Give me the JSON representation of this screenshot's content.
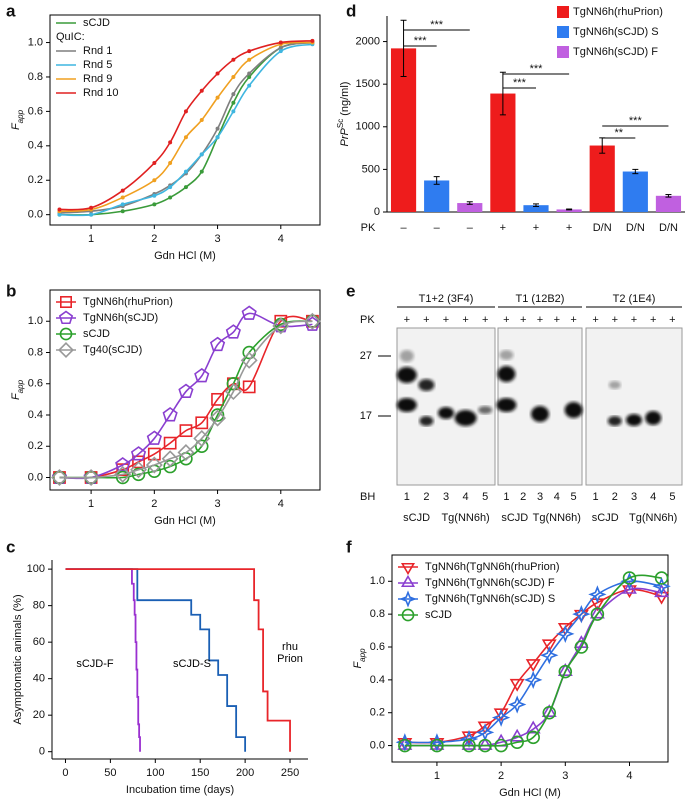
{
  "chart_data": [
    {
      "type": "line",
      "panel_label": "a",
      "x_label": "Gdn HCl (M)",
      "y_label": {
        "main": "F",
        "sub": "app"
      },
      "xlim": [
        0.35,
        4.62
      ],
      "xticks": [
        1,
        2,
        3,
        4
      ],
      "ylim": [
        -0.06,
        1.16
      ],
      "yticks": [
        {
          "value": 0,
          "label": "0.0"
        },
        0.2,
        0.4,
        0.6,
        0.8,
        {
          "value": 1,
          "label": "1.0"
        }
      ],
      "legend_loc": "upper left",
      "legend_subtitle": "QuIC:",
      "x": [
        0.5,
        1,
        1.5,
        2,
        2.25,
        2.5,
        2.75,
        3,
        3.25,
        3.5,
        4,
        4.5
      ],
      "series": [
        {
          "name": "sCJD",
          "color": "#3a9b3a",
          "marker": "dot",
          "values": [
            0,
            0,
            0.02,
            0.06,
            0.1,
            0.16,
            0.25,
            0.45,
            0.65,
            0.8,
            0.97,
            1.0
          ]
        },
        {
          "name": "Rnd 1",
          "color": "#7f7f7f",
          "marker": "dot",
          "values": [
            0.01,
            0.02,
            0.05,
            0.12,
            0.17,
            0.24,
            0.35,
            0.5,
            0.7,
            0.82,
            0.97,
            1.0
          ]
        },
        {
          "name": "Rnd 5",
          "color": "#3fb6e0",
          "marker": "dot",
          "values": [
            0,
            0,
            0.06,
            0.11,
            0.16,
            0.25,
            0.35,
            0.45,
            0.6,
            0.75,
            0.95,
            0.99
          ]
        },
        {
          "name": "Rnd 9",
          "color": "#f0a020",
          "marker": "dot",
          "values": [
            0.02,
            0.03,
            0.1,
            0.2,
            0.3,
            0.45,
            0.55,
            0.68,
            0.8,
            0.9,
            0.99,
            1.0
          ]
        },
        {
          "name": "Rnd 10",
          "color": "#e02020",
          "marker": "dot",
          "values": [
            0.03,
            0.04,
            0.14,
            0.3,
            0.42,
            0.6,
            0.72,
            0.82,
            0.9,
            0.95,
            1.0,
            1.01
          ]
        }
      ]
    },
    {
      "type": "line",
      "panel_label": "b",
      "x_label": "Gdn HCl (M)",
      "y_label": {
        "main": "F",
        "sub": "app"
      },
      "xlim": [
        0.35,
        4.62
      ],
      "xticks": [
        1,
        2,
        3,
        4
      ],
      "ylim": [
        -0.08,
        1.2
      ],
      "yticks": [
        {
          "value": 0,
          "label": "0.0"
        },
        0.2,
        0.4,
        0.6,
        0.8,
        {
          "value": 1,
          "label": "1.0"
        }
      ],
      "legend_loc": "upper left",
      "x": [
        0.5,
        1,
        1.5,
        1.75,
        2,
        2.25,
        2.5,
        2.75,
        3,
        3.25,
        3.5,
        4,
        4.5
      ],
      "series": [
        {
          "name": "TgNN6h(rhuPrion)",
          "color": "#e8252a",
          "marker": "square",
          "values": [
            0,
            0,
            0.05,
            0.1,
            0.15,
            0.22,
            0.3,
            0.35,
            0.5,
            0.6,
            0.58,
            1.0,
            1.0
          ]
        },
        {
          "name": "TgNN6h(sCJD)",
          "color": "#8a3fd0",
          "marker": "pentagon",
          "values": [
            0,
            0,
            0.08,
            0.15,
            0.25,
            0.4,
            0.55,
            0.65,
            0.85,
            0.93,
            1.05,
            0.97,
            0.98
          ]
        },
        {
          "name": "sCJD",
          "color": "#2ca02c",
          "marker": "circle",
          "values": [
            0,
            0,
            0,
            0.02,
            0.04,
            0.07,
            0.12,
            0.2,
            0.4,
            0.6,
            0.8,
            0.98,
            1.0
          ]
        },
        {
          "name": "Tg40(sCJD)",
          "color": "#999999",
          "marker": "diamond",
          "values": [
            0,
            0,
            0.02,
            0.05,
            0.08,
            0.12,
            0.16,
            0.25,
            0.38,
            0.55,
            0.75,
            0.97,
            1.0
          ]
        }
      ]
    },
    {
      "type": "step",
      "panel_label": "c",
      "x_label": "Incubation time (days)",
      "y_label": "Asymptomatic animals (%)",
      "xlim": [
        -15,
        270
      ],
      "xticks": [
        0,
        50,
        100,
        150,
        200,
        250
      ],
      "ylim": [
        -4,
        105
      ],
      "yticks": [
        0,
        20,
        40,
        60,
        80,
        100
      ],
      "series": [
        {
          "name": "sCJD-F",
          "color": "#9a30d0",
          "x": [
            0,
            74,
            76,
            77,
            78,
            79,
            80,
            81,
            82,
            83
          ],
          "values": [
            100,
            92,
            83,
            75,
            60,
            45,
            30,
            15,
            8,
            0
          ]
        },
        {
          "name": "sCJD-S",
          "color": "#1a5fb4",
          "x": [
            0,
            80,
            140,
            150,
            160,
            170,
            180,
            190,
            200
          ],
          "values": [
            100,
            83,
            75,
            67,
            50,
            42,
            25,
            8,
            0
          ]
        },
        {
          "name": "rhu Prion",
          "color": "#e8252a",
          "x": [
            0,
            210,
            215,
            220,
            225,
            250
          ],
          "values": [
            100,
            83,
            67,
            33,
            17,
            0
          ]
        }
      ]
    },
    {
      "type": "bar",
      "panel_label": "d",
      "y_label": {
        "main": "PrP",
        "sup": "Sc",
        "unit": "(ng/ml)"
      },
      "pk_label": "PK",
      "categories": [
        "–",
        "+",
        "D/N"
      ],
      "ylim": [
        0,
        2300
      ],
      "yticks": [
        0,
        500,
        1000,
        1500,
        2000
      ],
      "legend_loc": "upper right",
      "series": [
        {
          "name": "TgNN6h(rhuPrion)",
          "color": "#ee1c1c",
          "values": [
            1920,
            1390,
            780
          ],
          "errors": [
            330,
            250,
            90
          ]
        },
        {
          "name": "TgNN6h(sCJD) S",
          "color": "#2f7cf0",
          "values": [
            370,
            80,
            475
          ],
          "errors": [
            45,
            15,
            25
          ]
        },
        {
          "name": "TgNN6h(sCJD) F",
          "color": "#c060e0",
          "values": [
            105,
            30,
            190
          ],
          "errors": [
            15,
            5,
            15
          ]
        }
      ],
      "significance": [
        "***",
        "***",
        "***",
        "***",
        "**",
        "***"
      ]
    },
    {
      "type": "blot",
      "panel_label": "e",
      "pk_label": "PK",
      "bh_label": "BH",
      "markers": [
        "27",
        "17"
      ],
      "blots": [
        {
          "title": "T1+2 (3F4)",
          "pk": "+",
          "lanes": [
            "1",
            "2",
            "3",
            "4",
            "5"
          ],
          "samples": [
            "sCJD",
            "Tg(NN6h)"
          ]
        },
        {
          "title": "T1 (12B2)",
          "pk": "+",
          "lanes": [
            "1",
            "2",
            "3",
            "4",
            "5"
          ],
          "samples": [
            "sCJD",
            "Tg(NN6h)"
          ]
        },
        {
          "title": "T2 (1E4)",
          "pk": "+",
          "lanes": [
            "1",
            "2",
            "3",
            "4",
            "5"
          ],
          "samples": [
            "sCJD",
            "Tg(NN6h)"
          ]
        }
      ]
    },
    {
      "type": "line",
      "panel_label": "f",
      "x_label": "Gdn HCl (M)",
      "y_label": {
        "main": "F",
        "sub": "app"
      },
      "xlim": [
        0.3,
        4.6
      ],
      "xticks": [
        1,
        2,
        3,
        4
      ],
      "ylim": [
        -0.1,
        1.16
      ],
      "yticks": [
        {
          "value": 0,
          "label": "0.0"
        },
        0.2,
        0.4,
        0.6,
        0.8,
        {
          "value": 1,
          "label": "1.0"
        }
      ],
      "legend_loc": "upper left",
      "x": [
        0.5,
        1,
        1.5,
        1.75,
        2,
        2.25,
        2.5,
        2.75,
        3,
        3.25,
        3.5,
        4,
        4.5
      ],
      "series": [
        {
          "name": "TgNN6h(TgNN6h(rhuPrion)",
          "color": "#e8252a",
          "marker": "triangle-down",
          "values": [
            0.02,
            0.02,
            0.06,
            0.12,
            0.2,
            0.38,
            0.5,
            0.62,
            0.72,
            0.8,
            0.87,
            0.95,
            0.91
          ]
        },
        {
          "name": "TgNN6h(TgNN6h(sCJD) F",
          "color": "#8a3fd0",
          "marker": "triangle-up",
          "values": [
            0,
            0,
            0,
            0,
            0.02,
            0.05,
            0.1,
            0.2,
            0.45,
            0.62,
            0.8,
            0.95,
            0.93
          ]
        },
        {
          "name": "TgNN6h(TgNN6h(sCJD) S",
          "color": "#2f6fe0",
          "marker": "star4",
          "values": [
            0.02,
            0.02,
            0.04,
            0.08,
            0.17,
            0.25,
            0.4,
            0.55,
            0.68,
            0.8,
            0.92,
            1.0,
            0.97
          ]
        },
        {
          "name": "sCJD",
          "color": "#2ca02c",
          "marker": "circle",
          "values": [
            0,
            0,
            0,
            0,
            0,
            0.02,
            0.05,
            0.2,
            0.45,
            0.6,
            0.8,
            1.02,
            1.02
          ]
        }
      ]
    }
  ]
}
